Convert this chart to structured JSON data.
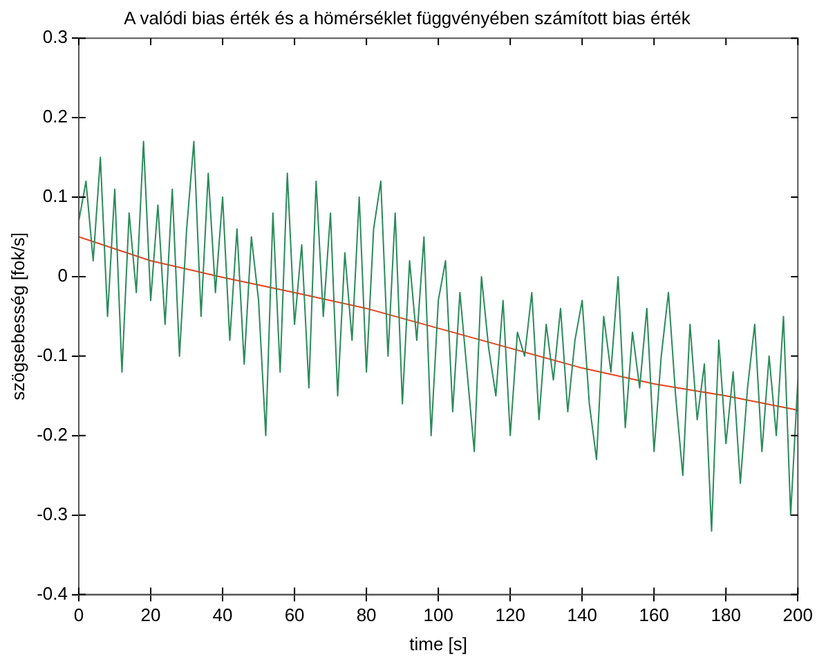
{
  "chart_data": {
    "type": "line",
    "title": "A valódi bias érték és a hömérséklet függvényében számított bias érték",
    "xlabel": "time [s]",
    "ylabel": "szögsebesség [fok/s]",
    "xlim": [
      0,
      200
    ],
    "xticks": [
      0,
      20,
      40,
      60,
      80,
      100,
      120,
      140,
      160,
      180,
      200
    ],
    "ylim": [
      -0.4,
      0.3
    ],
    "yticks": [
      -0.4,
      -0.3,
      -0.2,
      -0.1,
      0,
      0.1,
      0.2,
      0.3
    ],
    "grid": false,
    "legend": false,
    "marker": "none",
    "line_style": "solid",
    "series": [
      {
        "color": "#2a8a5a",
        "x": [
          0,
          2,
          4,
          6,
          8,
          10,
          12,
          14,
          16,
          18,
          20,
          22,
          24,
          26,
          28,
          30,
          32,
          34,
          36,
          38,
          40,
          42,
          44,
          46,
          48,
          50,
          52,
          54,
          56,
          58,
          60,
          62,
          64,
          66,
          68,
          70,
          72,
          74,
          76,
          78,
          80,
          82,
          84,
          86,
          88,
          90,
          92,
          94,
          96,
          98,
          100,
          102,
          104,
          106,
          108,
          110,
          112,
          114,
          116,
          118,
          120,
          122,
          124,
          126,
          128,
          130,
          132,
          134,
          136,
          138,
          140,
          142,
          144,
          146,
          148,
          150,
          152,
          154,
          156,
          158,
          160,
          162,
          164,
          166,
          168,
          170,
          172,
          174,
          176,
          178,
          180,
          182,
          184,
          186,
          188,
          190,
          192,
          194,
          196,
          198,
          200
        ],
        "values": [
          0.07,
          0.12,
          0.02,
          0.15,
          -0.05,
          0.11,
          -0.12,
          0.08,
          -0.02,
          0.17,
          -0.03,
          0.09,
          -0.06,
          0.11,
          -0.1,
          0.06,
          0.17,
          -0.05,
          0.13,
          -0.02,
          0.1,
          -0.08,
          0.06,
          -0.11,
          0.05,
          -0.03,
          -0.2,
          0.08,
          -0.12,
          0.13,
          -0.06,
          0.04,
          -0.14,
          0.12,
          -0.05,
          0.08,
          -0.15,
          0.03,
          -0.08,
          0.1,
          -0.12,
          0.06,
          0.12,
          -0.1,
          0.08,
          -0.16,
          0.02,
          -0.08,
          0.05,
          -0.2,
          -0.03,
          0.02,
          -0.17,
          -0.02,
          -0.12,
          -0.22,
          0.0,
          -0.09,
          -0.15,
          -0.03,
          -0.2,
          -0.07,
          -0.1,
          -0.02,
          -0.18,
          -0.06,
          -0.13,
          -0.04,
          -0.17,
          -0.08,
          -0.03,
          -0.16,
          -0.23,
          -0.05,
          -0.12,
          0.0,
          -0.19,
          -0.07,
          -0.14,
          -0.04,
          -0.22,
          -0.1,
          -0.02,
          -0.15,
          -0.25,
          -0.06,
          -0.18,
          -0.11,
          -0.32,
          -0.08,
          -0.21,
          -0.12,
          -0.26,
          -0.14,
          -0.06,
          -0.22,
          -0.1,
          -0.2,
          -0.05,
          -0.3,
          -0.13
        ]
      },
      {
        "color": "#e8401c",
        "x": [
          0,
          20,
          40,
          60,
          80,
          100,
          120,
          140,
          160,
          180,
          200
        ],
        "values": [
          0.05,
          0.02,
          -0.001,
          -0.02,
          -0.04,
          -0.065,
          -0.09,
          -0.115,
          -0.135,
          -0.15,
          -0.168
        ]
      }
    ]
  }
}
